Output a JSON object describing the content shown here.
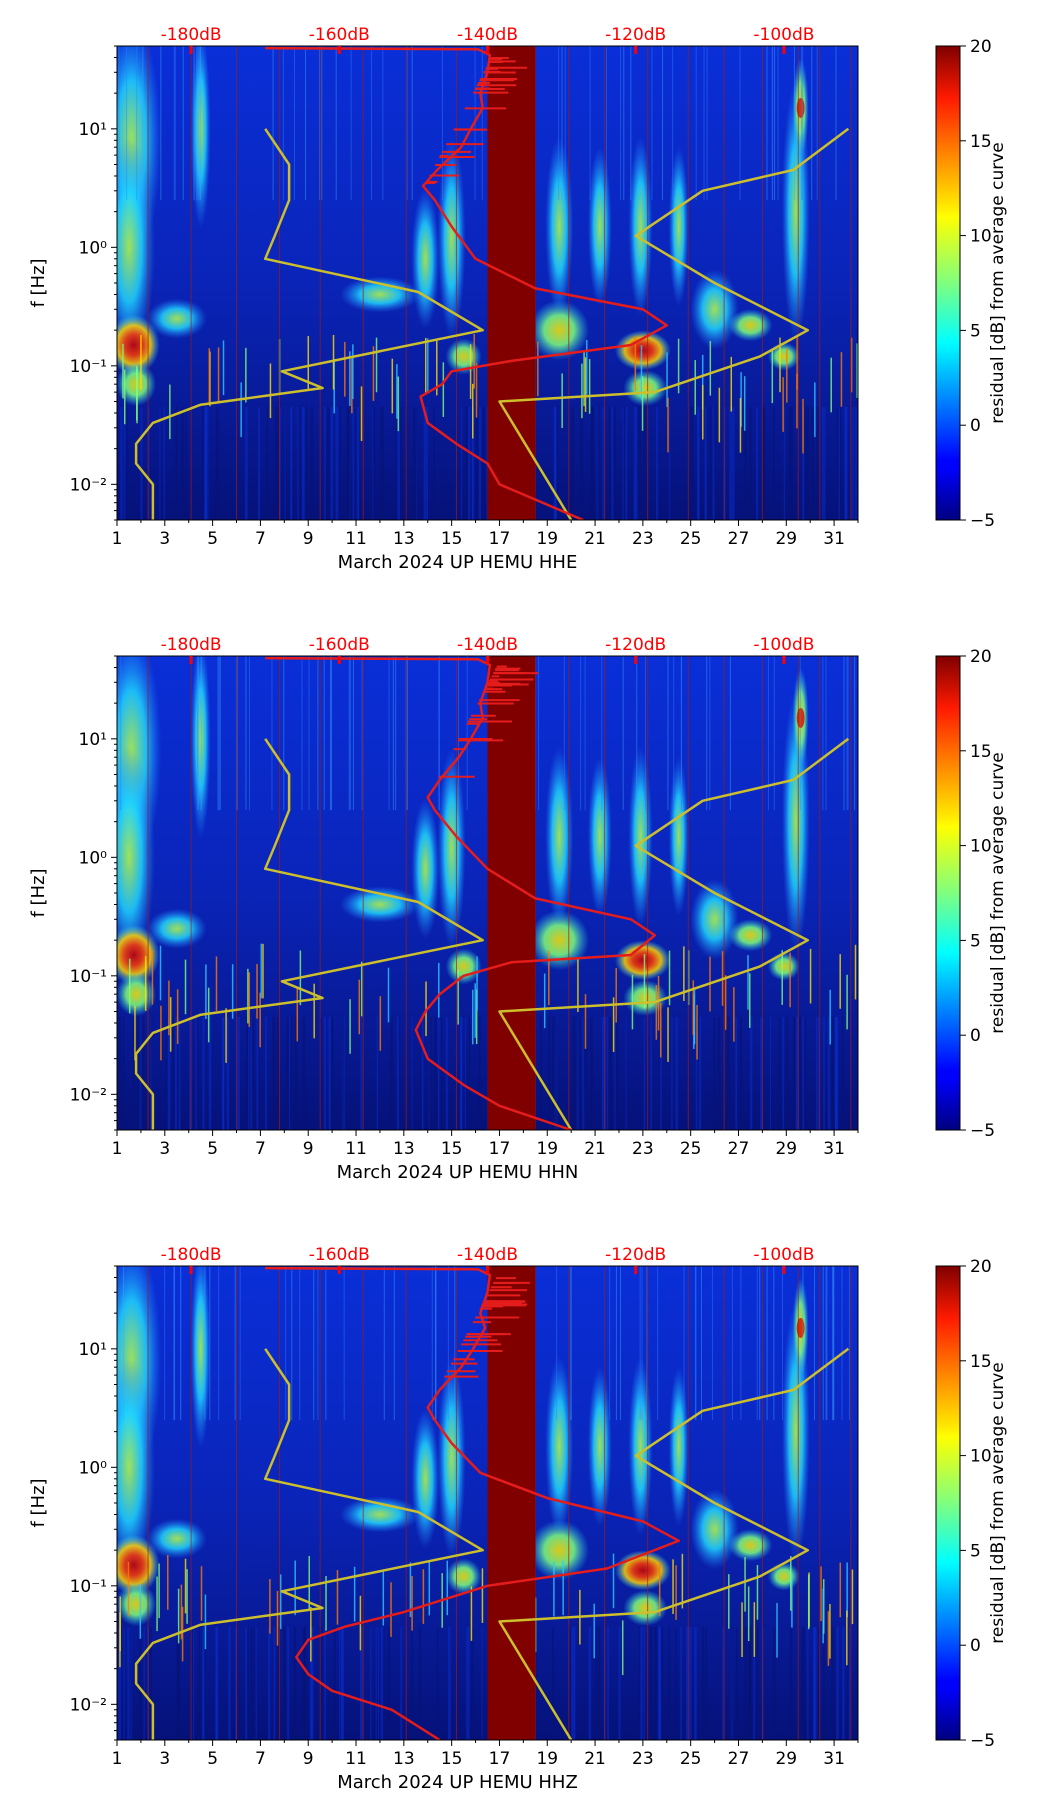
{
  "colorbar": {
    "label": "residual [dB] from average curve",
    "range": [
      -5,
      20
    ],
    "ticks": [
      -5,
      0,
      5,
      10,
      15,
      20
    ],
    "colormap": "jet"
  },
  "colors": {
    "psd_curve": "#e51c1c",
    "noise_model": "#cdbf2c",
    "gap": "#800000",
    "top_axis_text": "#ff0000"
  },
  "chart_data": [
    {
      "type": "heatmap",
      "component": "HHE",
      "xlabel": "March 2024 UP HEMU  HHE",
      "ylabel": "f [Hz]",
      "xlim": [
        1,
        32
      ],
      "ylim": [
        0.005,
        50
      ],
      "yscale": "log",
      "x_ticks": [
        1,
        3,
        5,
        7,
        9,
        11,
        13,
        15,
        17,
        19,
        21,
        23,
        25,
        27,
        29,
        31
      ],
      "y_ticks": [
        {
          "value": 0.01,
          "label": "10⁻²"
        },
        {
          "value": 0.1,
          "label": "10⁻¹"
        },
        {
          "value": 1,
          "label": "10⁰"
        },
        {
          "value": 10,
          "label": "10¹"
        }
      ],
      "top_axis_ticks": [
        {
          "x": 4.1,
          "label": "-180dB"
        },
        {
          "x": 10.3,
          "label": "-160dB"
        },
        {
          "x": 16.5,
          "label": "-140dB"
        },
        {
          "x": 22.7,
          "label": "-120dB"
        },
        {
          "x": 28.9,
          "label": "-100dB"
        }
      ],
      "data_gap": [
        16.5,
        18.5
      ],
      "noise_model_x": [
        2.5,
        2.5,
        1.8,
        1.8,
        2.5,
        4.5,
        9.6,
        7.9,
        16.3,
        13.6,
        7.2,
        7.6,
        8.2,
        8.2,
        7.2
      ],
      "noise_model_x2": [
        20.0,
        17.0,
        23.5,
        27.9,
        29.9,
        26.0,
        22.7,
        25.5,
        29.3,
        31.6
      ],
      "noise_model_y": [
        0.005,
        0.01,
        0.015,
        0.022,
        0.033,
        0.047,
        0.065,
        0.09,
        0.2,
        0.42,
        0.8,
        1.25,
        2.5,
        5.0,
        10.0
      ],
      "noise_model_y2": [
        0.005,
        0.05,
        0.06,
        0.12,
        0.2,
        0.5,
        1.25,
        3.0,
        4.5,
        10.0
      ],
      "psd_curve_x": [
        20.5,
        17.0,
        16.5,
        15.2,
        14.0,
        13.7,
        14.6,
        15.0,
        17.5,
        22.5,
        24.0,
        23.0,
        18.5,
        16.0,
        15.0,
        14.3,
        13.8,
        14.4,
        15.4,
        15.8,
        16.3,
        16.2,
        16.5,
        16.6,
        16.1,
        7.2
      ],
      "psd_curve_y": [
        0.005,
        0.01,
        0.015,
        0.022,
        0.033,
        0.055,
        0.07,
        0.09,
        0.11,
        0.15,
        0.22,
        0.3,
        0.45,
        0.8,
        1.5,
        2.5,
        3.3,
        4.5,
        7.0,
        10.0,
        15.0,
        20.0,
        30.0,
        42.0,
        47.0,
        48.0
      ],
      "gridlines_x": [
        2.3,
        4.1,
        6.0,
        7.8,
        9.5,
        11.3,
        13.1,
        15.2,
        16.9,
        18.5,
        19.9,
        21.4,
        23.2,
        24.9,
        26.4,
        28.0,
        29.5,
        30.4,
        31.7
      ]
    },
    {
      "type": "heatmap",
      "component": "HHN",
      "xlabel": "March 2024 UP HEMU  HHN",
      "ylabel": "f [Hz]",
      "xlim": [
        1,
        32
      ],
      "ylim": [
        0.005,
        50
      ],
      "yscale": "log",
      "x_ticks": [
        1,
        3,
        5,
        7,
        9,
        11,
        13,
        15,
        17,
        19,
        21,
        23,
        25,
        27,
        29,
        31
      ],
      "y_ticks": [
        {
          "value": 0.01,
          "label": "10⁻²"
        },
        {
          "value": 0.1,
          "label": "10⁻¹"
        },
        {
          "value": 1,
          "label": "10⁰"
        },
        {
          "value": 10,
          "label": "10¹"
        }
      ],
      "top_axis_ticks": [
        {
          "x": 4.1,
          "label": "-180dB"
        },
        {
          "x": 10.3,
          "label": "-160dB"
        },
        {
          "x": 16.5,
          "label": "-140dB"
        },
        {
          "x": 22.7,
          "label": "-120dB"
        },
        {
          "x": 28.9,
          "label": "-100dB"
        }
      ],
      "data_gap": [
        16.5,
        18.5
      ],
      "noise_model_x": [
        2.5,
        2.5,
        1.8,
        1.8,
        2.5,
        4.5,
        9.6,
        7.9,
        16.3,
        13.6,
        7.2,
        7.6,
        8.2,
        8.2,
        7.2
      ],
      "noise_model_x2": [
        20.0,
        17.0,
        23.5,
        27.9,
        29.9,
        26.0,
        22.7,
        25.5,
        29.3,
        31.6
      ],
      "noise_model_y": [
        0.005,
        0.01,
        0.015,
        0.022,
        0.033,
        0.047,
        0.065,
        0.09,
        0.2,
        0.42,
        0.8,
        1.25,
        2.5,
        5.0,
        10.0
      ],
      "noise_model_y2": [
        0.005,
        0.05,
        0.06,
        0.12,
        0.2,
        0.5,
        1.25,
        3.0,
        4.5,
        10.0
      ],
      "psd_curve_x": [
        20.0,
        17.0,
        15.5,
        14.0,
        13.5,
        13.9,
        14.5,
        15.5,
        17.5,
        22.5,
        23.5,
        22.5,
        18.5,
        16.5,
        15.2,
        14.3,
        14.0,
        14.5,
        15.3,
        15.8,
        16.3,
        16.2,
        16.5,
        16.6,
        16.1,
        7.2
      ],
      "psd_curve_y": [
        0.005,
        0.008,
        0.012,
        0.02,
        0.035,
        0.05,
        0.07,
        0.1,
        0.13,
        0.15,
        0.22,
        0.3,
        0.45,
        0.8,
        1.5,
        2.5,
        3.2,
        4.5,
        7.0,
        10.0,
        15.0,
        20.0,
        30.0,
        42.0,
        47.0,
        48.0
      ],
      "gridlines_x": [
        2.3,
        4.1,
        6.0,
        7.8,
        9.5,
        11.3,
        13.1,
        15.2,
        16.9,
        18.5,
        19.9,
        21.4,
        23.2,
        24.9,
        26.4,
        28.0,
        29.5,
        30.4,
        31.7
      ]
    },
    {
      "type": "heatmap",
      "component": "HHZ",
      "xlabel": "March 2024 UP HEMU  HHZ",
      "ylabel": "f [Hz]",
      "xlim": [
        1,
        32
      ],
      "ylim": [
        0.005,
        50
      ],
      "yscale": "log",
      "x_ticks": [
        1,
        3,
        5,
        7,
        9,
        11,
        13,
        15,
        17,
        19,
        21,
        23,
        25,
        27,
        29,
        31
      ],
      "y_ticks": [
        {
          "value": 0.01,
          "label": "10⁻²"
        },
        {
          "value": 0.1,
          "label": "10⁻¹"
        },
        {
          "value": 1,
          "label": "10⁰"
        },
        {
          "value": 10,
          "label": "10¹"
        }
      ],
      "top_axis_ticks": [
        {
          "x": 4.1,
          "label": "-180dB"
        },
        {
          "x": 10.3,
          "label": "-160dB"
        },
        {
          "x": 16.5,
          "label": "-140dB"
        },
        {
          "x": 22.7,
          "label": "-120dB"
        },
        {
          "x": 28.9,
          "label": "-100dB"
        }
      ],
      "data_gap": [
        16.5,
        18.5
      ],
      "noise_model_x": [
        2.5,
        2.5,
        1.8,
        1.8,
        2.5,
        4.5,
        9.6,
        7.9,
        16.3,
        13.6,
        7.2,
        7.6,
        8.2,
        8.2,
        7.2
      ],
      "noise_model_x2": [
        20.0,
        17.0,
        23.5,
        27.9,
        29.9,
        26.0,
        22.7,
        25.5,
        29.3,
        31.6
      ],
      "noise_model_y": [
        0.005,
        0.01,
        0.015,
        0.022,
        0.033,
        0.047,
        0.065,
        0.09,
        0.2,
        0.42,
        0.8,
        1.25,
        2.5,
        5.0,
        10.0
      ],
      "noise_model_y2": [
        0.005,
        0.05,
        0.06,
        0.12,
        0.2,
        0.5,
        1.25,
        3.0,
        4.5,
        10.0
      ],
      "psd_curve_x": [
        14.5,
        12.5,
        10.0,
        9.0,
        8.5,
        9.0,
        10.5,
        13.0,
        16.5,
        21.5,
        24.5,
        23.0,
        19.0,
        16.2,
        15.0,
        14.3,
        14.0,
        14.5,
        15.4,
        15.9,
        16.4,
        16.2,
        16.5,
        16.6,
        16.1,
        7.2
      ],
      "psd_curve_y": [
        0.005,
        0.009,
        0.013,
        0.018,
        0.025,
        0.035,
        0.045,
        0.06,
        0.1,
        0.14,
        0.24,
        0.35,
        0.55,
        0.9,
        1.6,
        2.5,
        3.2,
        4.5,
        7.0,
        10.0,
        15.0,
        20.0,
        30.0,
        42.0,
        47.0,
        48.0
      ],
      "gridlines_x": [
        2.3,
        4.1,
        6.0,
        7.8,
        9.5,
        11.3,
        13.1,
        15.2,
        16.9,
        18.5,
        19.9,
        21.4,
        23.2,
        24.9,
        26.4,
        28.0,
        29.5,
        30.4,
        31.7
      ]
    }
  ]
}
